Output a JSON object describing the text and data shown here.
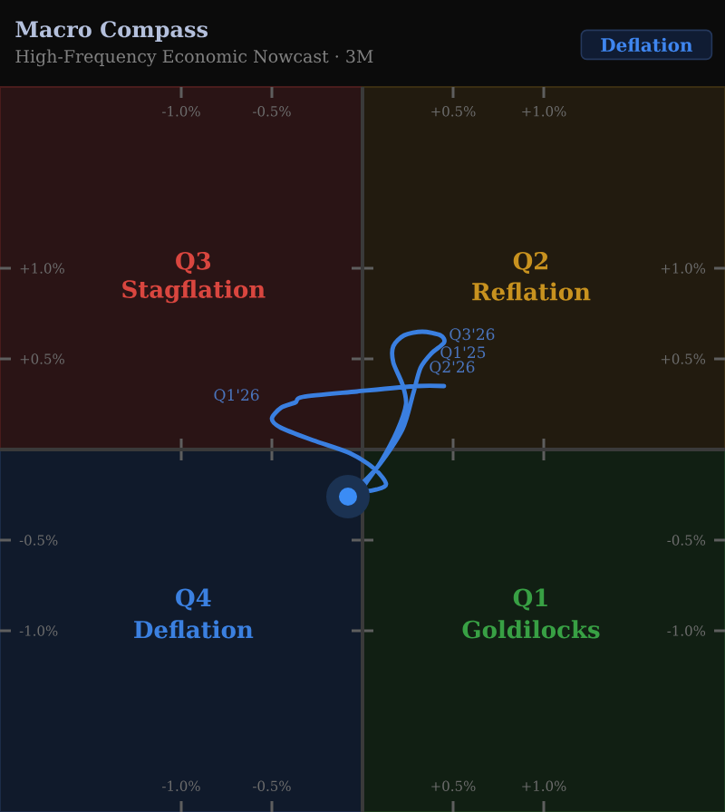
{
  "chart_data": {
    "type": "line",
    "title": "Macro Compass",
    "subtitle": "High-Frequency Economic Nowcast · 3M",
    "xlim": [
      -2,
      2
    ],
    "ylim": [
      -2,
      2
    ],
    "xticks": [
      {
        "value": -1,
        "label": "-1.0%"
      },
      {
        "value": -0.5,
        "label": "-0.5%"
      },
      {
        "value": 0.5,
        "label": "+0.5%"
      },
      {
        "value": 1,
        "label": "+1.0%"
      }
    ],
    "yticks": [
      {
        "value": -1,
        "label": "-1.0%"
      },
      {
        "value": -0.5,
        "label": "-0.5%"
      },
      {
        "value": 0.5,
        "label": "+0.5%"
      },
      {
        "value": 1,
        "label": "+1.0%"
      }
    ],
    "x2lim": [
      -2,
      2
    ],
    "x2ticks": [
      {
        "value": -1,
        "label": "-1.0%"
      },
      {
        "value": -0.5,
        "label": "-0.5%"
      },
      {
        "value": 0.5,
        "label": "+0.5%"
      },
      {
        "value": 1,
        "label": "+1.0%"
      }
    ],
    "y2lim": [
      -2,
      2
    ],
    "y2ticks": [
      {
        "value": -1,
        "label": "-1.0%"
      },
      {
        "value": -0.5,
        "label": "-0.5%"
      },
      {
        "value": 0.5,
        "label": "+0.5%"
      },
      {
        "value": 1,
        "label": "+1.0%"
      }
    ],
    "series": [
      {
        "color": "#3a7fe0",
        "x": [
          0.45,
          0.3,
          -0.03,
          -0.33,
          -0.37,
          -0.45,
          -0.5,
          -0.45,
          -0.27,
          -0.07,
          0.07,
          0.13,
          0.08,
          0.0,
          0.1,
          0.19,
          0.24,
          0.22,
          0.17,
          0.17,
          0.23,
          0.33,
          0.43,
          0.45,
          0.38,
          0.32,
          0.28,
          0.22,
          0.08,
          -0.08
        ],
        "values": [
          0.35,
          0.35,
          0.32,
          0.29,
          0.26,
          0.23,
          0.17,
          0.12,
          0.05,
          -0.02,
          -0.11,
          -0.19,
          -0.22,
          -0.22,
          -0.07,
          0.1,
          0.25,
          0.36,
          0.48,
          0.57,
          0.63,
          0.65,
          0.63,
          0.59,
          0.53,
          0.45,
          0.31,
          0.11,
          -0.1,
          -0.26
        ]
      },
      {
        "type": "scatter",
        "color": "#3b8cf5",
        "marker": "circle",
        "x": [
          -0.08
        ],
        "values": [
          -0.26
        ]
      }
    ],
    "annotations": [
      "Deflation",
      "Q3",
      "Stagflation",
      "Q2",
      "Reflation",
      "Q4",
      "Deflation",
      "Q1",
      "Goldilocks",
      {
        "text": "Q1'26",
        "x": -0.5,
        "y": 0.17
      },
      {
        "text": "Q2'26",
        "x": 0.32,
        "y": 0.45
      },
      {
        "text": "Q1'25",
        "x": 0.38,
        "y": 0.53
      },
      {
        "text": "Q3'26",
        "x": 0.43,
        "y": 0.63
      }
    ]
  }
}
